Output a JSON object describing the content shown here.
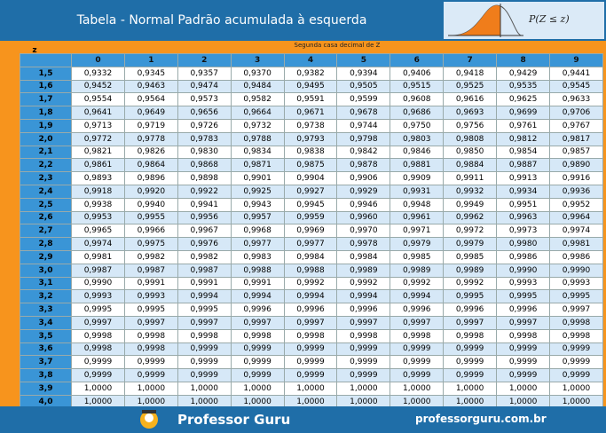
{
  "header": {
    "title": "Tabela - Normal Padrão acumulada à esquerda",
    "formula": "P(Z ≤ z)"
  },
  "table": {
    "corner_label": "z",
    "caption": "Segunda casa decimal de Z",
    "columns": [
      "0",
      "1",
      "2",
      "3",
      "4",
      "5",
      "6",
      "7",
      "8",
      "9"
    ],
    "rows": [
      {
        "z": "1,5",
        "values": [
          "0,9332",
          "0,9345",
          "0,9357",
          "0,9370",
          "0,9382",
          "0,9394",
          "0,9406",
          "0,9418",
          "0,9429",
          "0,9441"
        ]
      },
      {
        "z": "1,6",
        "values": [
          "0,9452",
          "0,9463",
          "0,9474",
          "0,9484",
          "0,9495",
          "0,9505",
          "0,9515",
          "0,9525",
          "0,9535",
          "0,9545"
        ]
      },
      {
        "z": "1,7",
        "values": [
          "0,9554",
          "0,9564",
          "0,9573",
          "0,9582",
          "0,9591",
          "0,9599",
          "0,9608",
          "0,9616",
          "0,9625",
          "0,9633"
        ]
      },
      {
        "z": "1,8",
        "values": [
          "0,9641",
          "0,9649",
          "0,9656",
          "0,9664",
          "0,9671",
          "0,9678",
          "0,9686",
          "0,9693",
          "0,9699",
          "0,9706"
        ]
      },
      {
        "z": "1,9",
        "values": [
          "0,9713",
          "0,9719",
          "0,9726",
          "0,9732",
          "0,9738",
          "0,9744",
          "0,9750",
          "0,9756",
          "0,9761",
          "0,9767"
        ]
      },
      {
        "z": "2,0",
        "values": [
          "0,9772",
          "0,9778",
          "0,9783",
          "0,9788",
          "0,9793",
          "0,9798",
          "0,9803",
          "0,9808",
          "0,9812",
          "0,9817"
        ]
      },
      {
        "z": "2,1",
        "values": [
          "0,9821",
          "0,9826",
          "0,9830",
          "0,9834",
          "0,9838",
          "0,9842",
          "0,9846",
          "0,9850",
          "0,9854",
          "0,9857"
        ]
      },
      {
        "z": "2,2",
        "values": [
          "0,9861",
          "0,9864",
          "0,9868",
          "0,9871",
          "0,9875",
          "0,9878",
          "0,9881",
          "0,9884",
          "0,9887",
          "0,9890"
        ]
      },
      {
        "z": "2,3",
        "values": [
          "0,9893",
          "0,9896",
          "0,9898",
          "0,9901",
          "0,9904",
          "0,9906",
          "0,9909",
          "0,9911",
          "0,9913",
          "0,9916"
        ]
      },
      {
        "z": "2,4",
        "values": [
          "0,9918",
          "0,9920",
          "0,9922",
          "0,9925",
          "0,9927",
          "0,9929",
          "0,9931",
          "0,9932",
          "0,9934",
          "0,9936"
        ]
      },
      {
        "z": "2,5",
        "values": [
          "0,9938",
          "0,9940",
          "0,9941",
          "0,9943",
          "0,9945",
          "0,9946",
          "0,9948",
          "0,9949",
          "0,9951",
          "0,9952"
        ]
      },
      {
        "z": "2,6",
        "values": [
          "0,9953",
          "0,9955",
          "0,9956",
          "0,9957",
          "0,9959",
          "0,9960",
          "0,9961",
          "0,9962",
          "0,9963",
          "0,9964"
        ]
      },
      {
        "z": "2,7",
        "values": [
          "0,9965",
          "0,9966",
          "0,9967",
          "0,9968",
          "0,9969",
          "0,9970",
          "0,9971",
          "0,9972",
          "0,9973",
          "0,9974"
        ]
      },
      {
        "z": "2,8",
        "values": [
          "0,9974",
          "0,9975",
          "0,9976",
          "0,9977",
          "0,9977",
          "0,9978",
          "0,9979",
          "0,9979",
          "0,9980",
          "0,9981"
        ]
      },
      {
        "z": "2,9",
        "values": [
          "0,9981",
          "0,9982",
          "0,9982",
          "0,9983",
          "0,9984",
          "0,9984",
          "0,9985",
          "0,9985",
          "0,9986",
          "0,9986"
        ]
      },
      {
        "z": "3,0",
        "values": [
          "0,9987",
          "0,9987",
          "0,9987",
          "0,9988",
          "0,9988",
          "0,9989",
          "0,9989",
          "0,9989",
          "0,9990",
          "0,9990"
        ]
      },
      {
        "z": "3,1",
        "values": [
          "0,9990",
          "0,9991",
          "0,9991",
          "0,9991",
          "0,9992",
          "0,9992",
          "0,9992",
          "0,9992",
          "0,9993",
          "0,9993"
        ]
      },
      {
        "z": "3,2",
        "values": [
          "0,9993",
          "0,9993",
          "0,9994",
          "0,9994",
          "0,9994",
          "0,9994",
          "0,9994",
          "0,9995",
          "0,9995",
          "0,9995"
        ]
      },
      {
        "z": "3,3",
        "values": [
          "0,9995",
          "0,9995",
          "0,9995",
          "0,9996",
          "0,9996",
          "0,9996",
          "0,9996",
          "0,9996",
          "0,9996",
          "0,9997"
        ]
      },
      {
        "z": "3,4",
        "values": [
          "0,9997",
          "0,9997",
          "0,9997",
          "0,9997",
          "0,9997",
          "0,9997",
          "0,9997",
          "0,9997",
          "0,9997",
          "0,9998"
        ]
      },
      {
        "z": "3,5",
        "values": [
          "0,9998",
          "0,9998",
          "0,9998",
          "0,9998",
          "0,9998",
          "0,9998",
          "0,9998",
          "0,9998",
          "0,9998",
          "0,9998"
        ]
      },
      {
        "z": "3,6",
        "values": [
          "0,9998",
          "0,9998",
          "0,9999",
          "0,9999",
          "0,9999",
          "0,9999",
          "0,9999",
          "0,9999",
          "0,9999",
          "0,9999"
        ]
      },
      {
        "z": "3,7",
        "values": [
          "0,9999",
          "0,9999",
          "0,9999",
          "0,9999",
          "0,9999",
          "0,9999",
          "0,9999",
          "0,9999",
          "0,9999",
          "0,9999"
        ]
      },
      {
        "z": "3,8",
        "values": [
          "0,9999",
          "0,9999",
          "0,9999",
          "0,9999",
          "0,9999",
          "0,9999",
          "0,9999",
          "0,9999",
          "0,9999",
          "0,9999"
        ]
      },
      {
        "z": "3,9",
        "values": [
          "1,0000",
          "1,0000",
          "1,0000",
          "1,0000",
          "1,0000",
          "1,0000",
          "1,0000",
          "1,0000",
          "1,0000",
          "1,0000"
        ]
      },
      {
        "z": "4,0",
        "values": [
          "1,0000",
          "1,0000",
          "1,0000",
          "1,0000",
          "1,0000",
          "1,0000",
          "1,0000",
          "1,0000",
          "1,0000",
          "1,0000"
        ]
      }
    ]
  },
  "footer": {
    "brand": "Professor Guru",
    "website": "professorguru.com.br"
  }
}
